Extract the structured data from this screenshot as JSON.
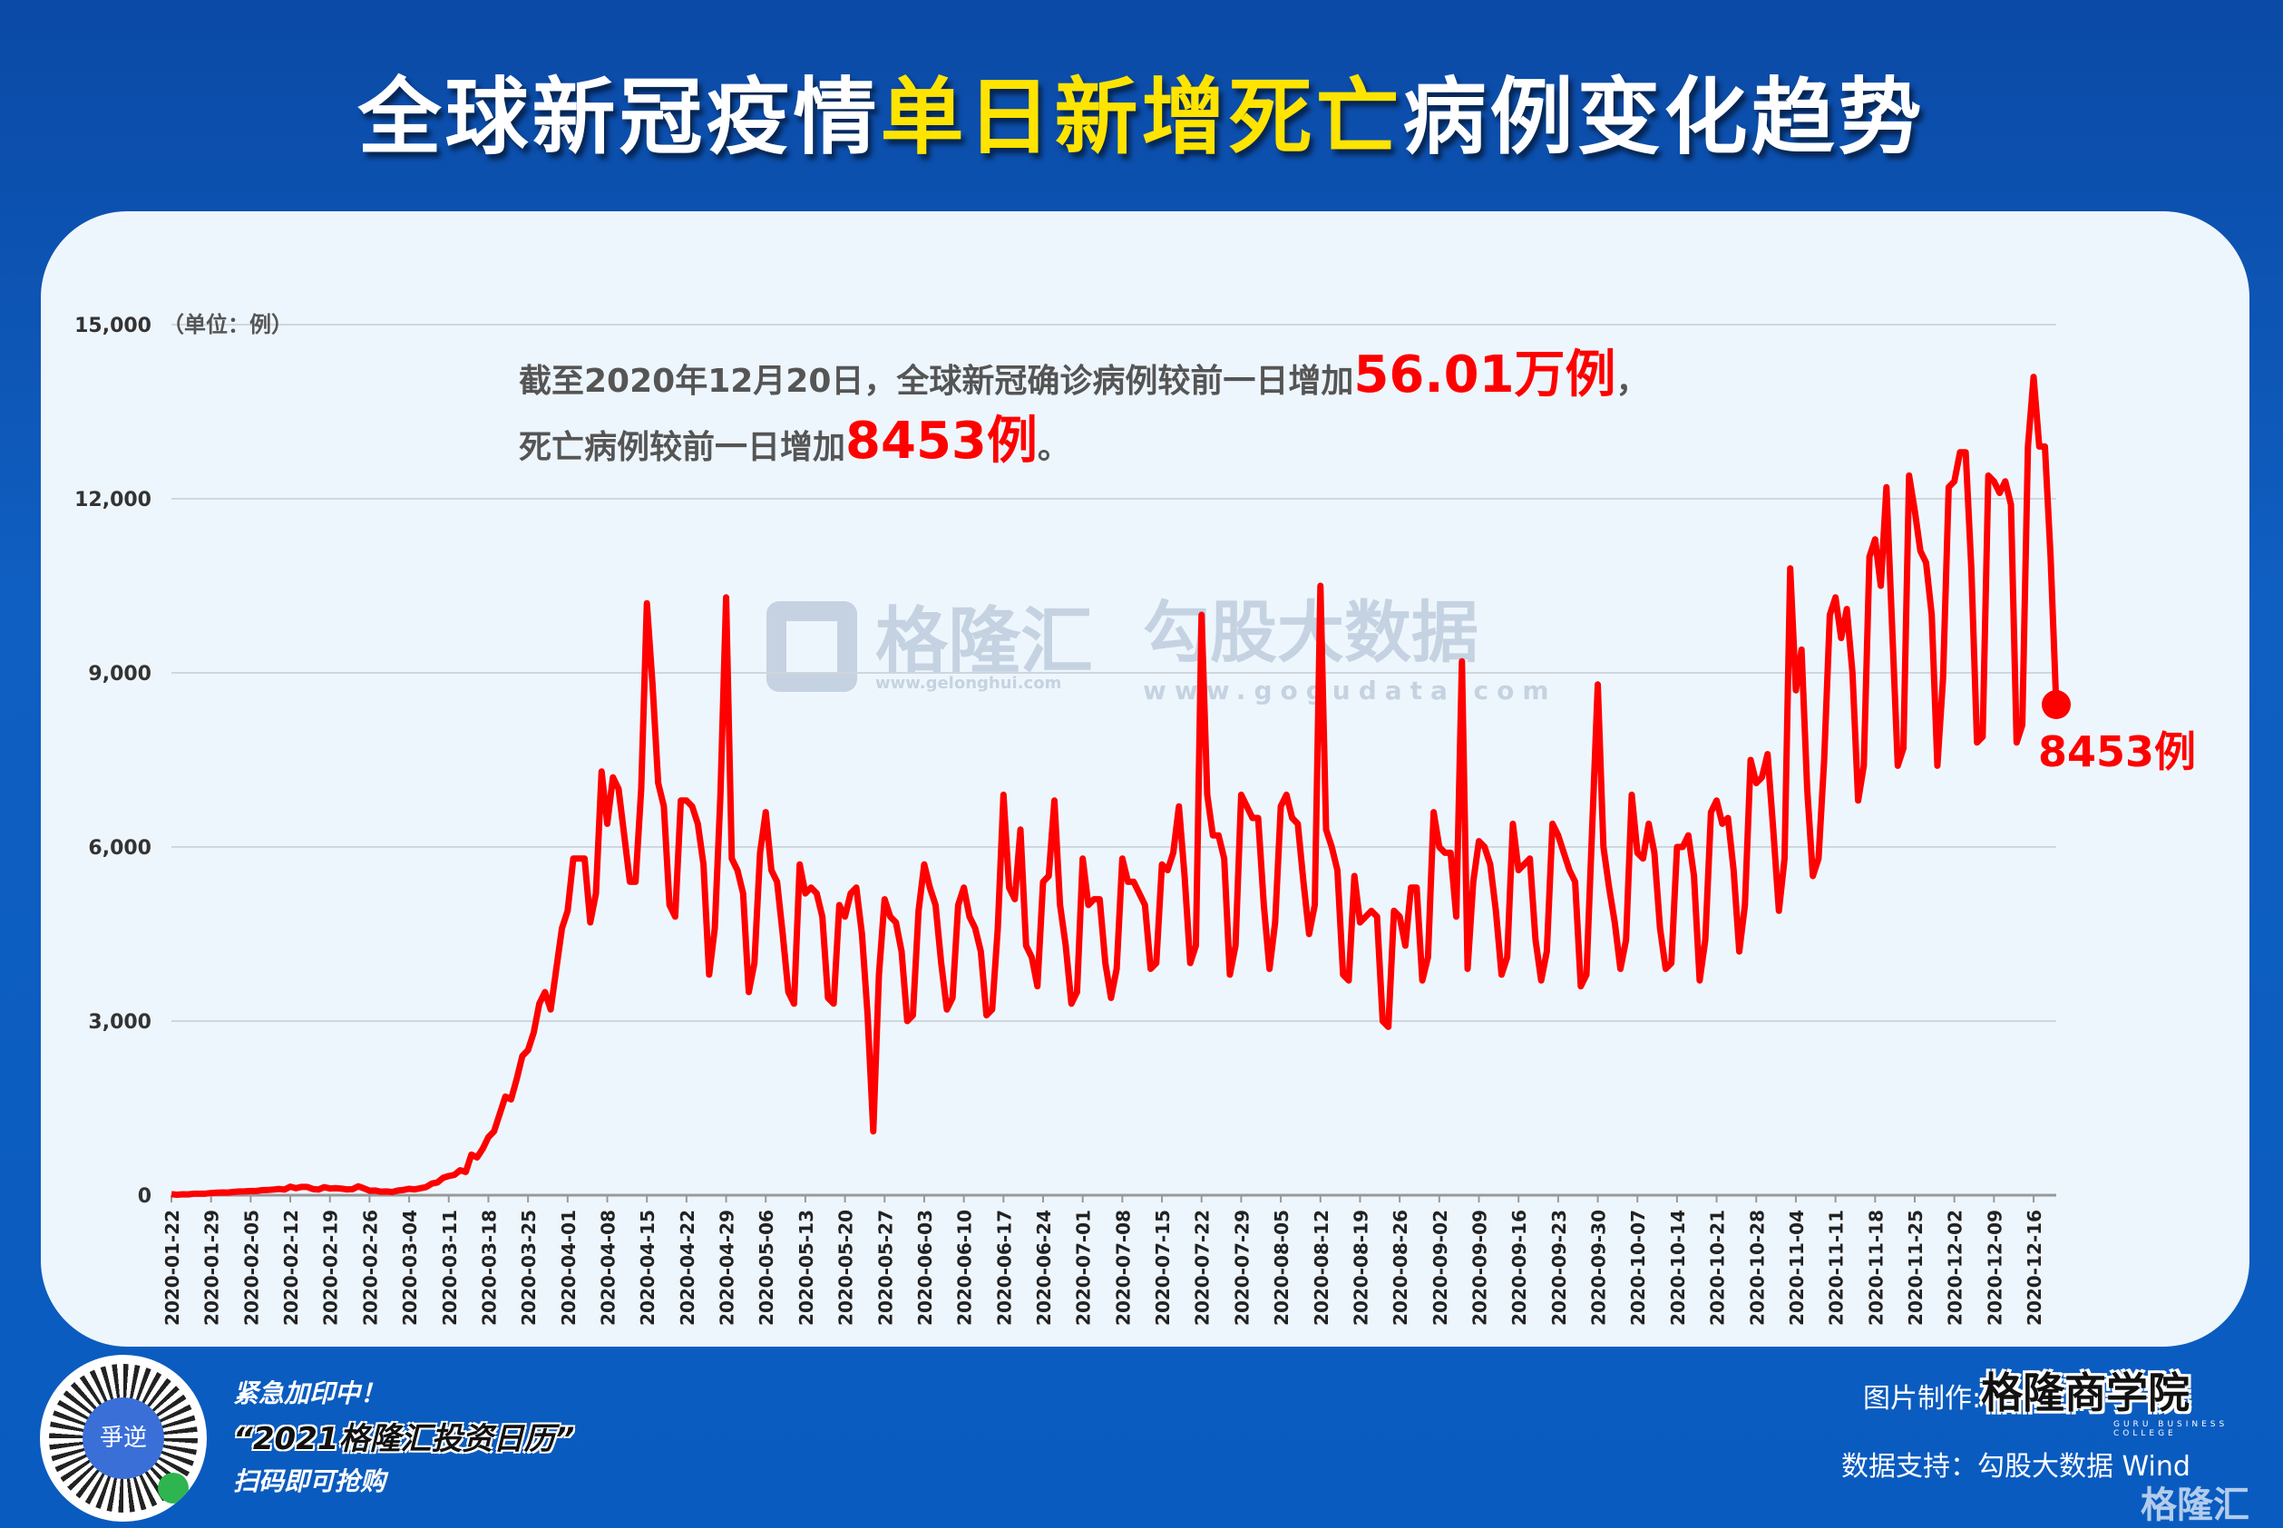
{
  "title": {
    "part1": "全球新冠疫情",
    "highlight": "单日新增死亡",
    "part2": "病例变化趋势"
  },
  "note": {
    "line1_prefix": "截至2020年12月20日，全球新冠确诊病例较前一日增加",
    "line1_value": "56.01万例",
    "line1_suffix": "，",
    "line2_prefix": "死亡病例较前一日增加",
    "line2_value": "8453例",
    "line2_suffix": "。"
  },
  "watermarks": {
    "brand1": "格隆汇",
    "url1": "www.gelonghui.com",
    "brand2": "勾股大数据",
    "url2": "www.gogudata.com"
  },
  "footer": {
    "promo1": "紧急加印中！",
    "promo2": "“2021格隆汇投资日历”",
    "promo3": "扫码即可抢购",
    "qr_center": "爭逆",
    "made_by_label": "图片制作:",
    "made_by_logo": "格隆商学院",
    "made_by_logo_sub": "GURU BUSINESS COLLEGE",
    "data_support": "数据支持：勾股大数据 Wind",
    "corner_logo": "格隆汇"
  },
  "colors": {
    "line": "#ff0000",
    "highlight": "#ffe400",
    "background": "#0b4aa6",
    "panel": "#eef6fd"
  },
  "chart_data": {
    "type": "line",
    "title": "",
    "xlabel": "",
    "ylabel": "",
    "unit_label": "（单位：例）",
    "ylim": [
      0,
      15000
    ],
    "yticks": [
      "0",
      "3,000",
      "6,000",
      "9,000",
      "12,000",
      "15,000"
    ],
    "grid": "horizontal",
    "x_start": "2020-01-22",
    "x_end": "2020-12-20",
    "xticks": [
      "2020-01-22",
      "2020-01-29",
      "2020-02-05",
      "2020-02-12",
      "2020-02-19",
      "2020-02-26",
      "2020-03-04",
      "2020-03-11",
      "2020-03-18",
      "2020-03-25",
      "2020-04-01",
      "2020-04-08",
      "2020-04-15",
      "2020-04-22",
      "2020-04-29",
      "2020-05-06",
      "2020-05-13",
      "2020-05-20",
      "2020-05-27",
      "2020-06-03",
      "2020-06-10",
      "2020-06-17",
      "2020-06-24",
      "2020-07-01",
      "2020-07-08",
      "2020-07-15",
      "2020-07-22",
      "2020-07-29",
      "2020-08-05",
      "2020-08-12",
      "2020-08-19",
      "2020-08-26",
      "2020-09-02",
      "2020-09-09",
      "2020-09-16",
      "2020-09-23",
      "2020-09-30",
      "2020-10-07",
      "2020-10-14",
      "2020-10-21",
      "2020-10-28",
      "2020-11-04",
      "2020-11-11",
      "2020-11-18",
      "2020-11-25",
      "2020-12-02",
      "2020-12-09",
      "2020-12-16"
    ],
    "end_label": "8453例",
    "values": [
      17,
      8,
      16,
      14,
      26,
      26,
      26,
      38,
      43,
      46,
      45,
      57,
      64,
      66,
      73,
      73,
      86,
      89,
      97,
      108,
      97,
      146,
      121,
      143,
      142,
      106,
      98,
      139,
      116,
      121,
      114,
      100,
      104,
      153,
      118,
      78,
      81,
      60,
      65,
      55,
      80,
      90,
      110,
      100,
      120,
      140,
      200,
      220,
      300,
      330,
      350,
      430,
      400,
      700,
      650,
      800,
      1000,
      1100,
      1400,
      1700,
      1650,
      2000,
      2400,
      2500,
      2800,
      3300,
      3500,
      3200,
      3900,
      4600,
      4900,
      5800,
      5800,
      5800,
      4700,
      5200,
      7300,
      6400,
      7200,
      7000,
      6200,
      5400,
      5400,
      7000,
      10200,
      8800,
      7100,
      6700,
      5000,
      4800,
      6800,
      6800,
      6700,
      6400,
      5700,
      3800,
      4600,
      6900,
      10300,
      5800,
      5600,
      5200,
      3500,
      4000,
      5900,
      6600,
      5600,
      5400,
      4500,
      3500,
      3300,
      5700,
      5200,
      5300,
      5200,
      4800,
      3400,
      3300,
      5000,
      4800,
      5200,
      5300,
      4500,
      3100,
      1100,
      3800,
      5100,
      4800,
      4700,
      4200,
      3000,
      3100,
      4900,
      5700,
      5300,
      5000,
      4000,
      3200,
      3400,
      5000,
      5300,
      4800,
      4600,
      4200,
      3100,
      3200,
      4600,
      6900,
      5300,
      5100,
      6300,
      4300,
      4100,
      3600,
      5400,
      5500,
      6800,
      5000,
      4300,
      3300,
      3500,
      5800,
      5000,
      5100,
      5100,
      4000,
      3400,
      3900,
      5800,
      5400,
      5400,
      5200,
      5000,
      3900,
      4000,
      5700,
      5600,
      5900,
      6700,
      5500,
      4000,
      4300,
      10000,
      6900,
      6200,
      6200,
      5800,
      3800,
      4300,
      6900,
      6700,
      6500,
      6500,
      5000,
      3900,
      4700,
      6700,
      6900,
      6500,
      6400,
      5400,
      4500,
      5000,
      10500,
      6300,
      6000,
      5600,
      3800,
      3700,
      5500,
      4700,
      4800,
      4900,
      4800,
      3000,
      2900,
      4900,
      4800,
      4300,
      5300,
      5300,
      3700,
      4100,
      6600,
      6000,
      5900,
      5900,
      4800,
      9200,
      3900,
      5400,
      6100,
      6000,
      5700,
      4900,
      3800,
      4100,
      6400,
      5600,
      5700,
      5800,
      4400,
      3700,
      4200,
      6400,
      6200,
      5900,
      5600,
      5400,
      3600,
      3800,
      6300,
      8800,
      6000,
      5300,
      4700,
      3900,
      4400,
      6900,
      5900,
      5800,
      6400,
      5900,
      4600,
      3900,
      4000,
      6000,
      6000,
      6200,
      5500,
      3700,
      4400,
      6600,
      6800,
      6400,
      6500,
      5600,
      4200,
      5000,
      7500,
      7100,
      7200,
      7600,
      6300,
      4900,
      5800,
      10800,
      8700,
      9400,
      7000,
      5500,
      5800,
      7500,
      10000,
      10300,
      9600,
      10100,
      9000,
      6800,
      7400,
      11000,
      11300,
      10500,
      12200,
      9800,
      7400,
      7700,
      12400,
      11800,
      11100,
      10900,
      10000,
      7400,
      8900,
      12200,
      12300,
      12800,
      12800,
      10800,
      7800,
      7900,
      12400,
      12300,
      12100,
      12300,
      11900,
      7800,
      8100,
      12900,
      14100,
      12900,
      12900,
      11000,
      8453
    ]
  }
}
